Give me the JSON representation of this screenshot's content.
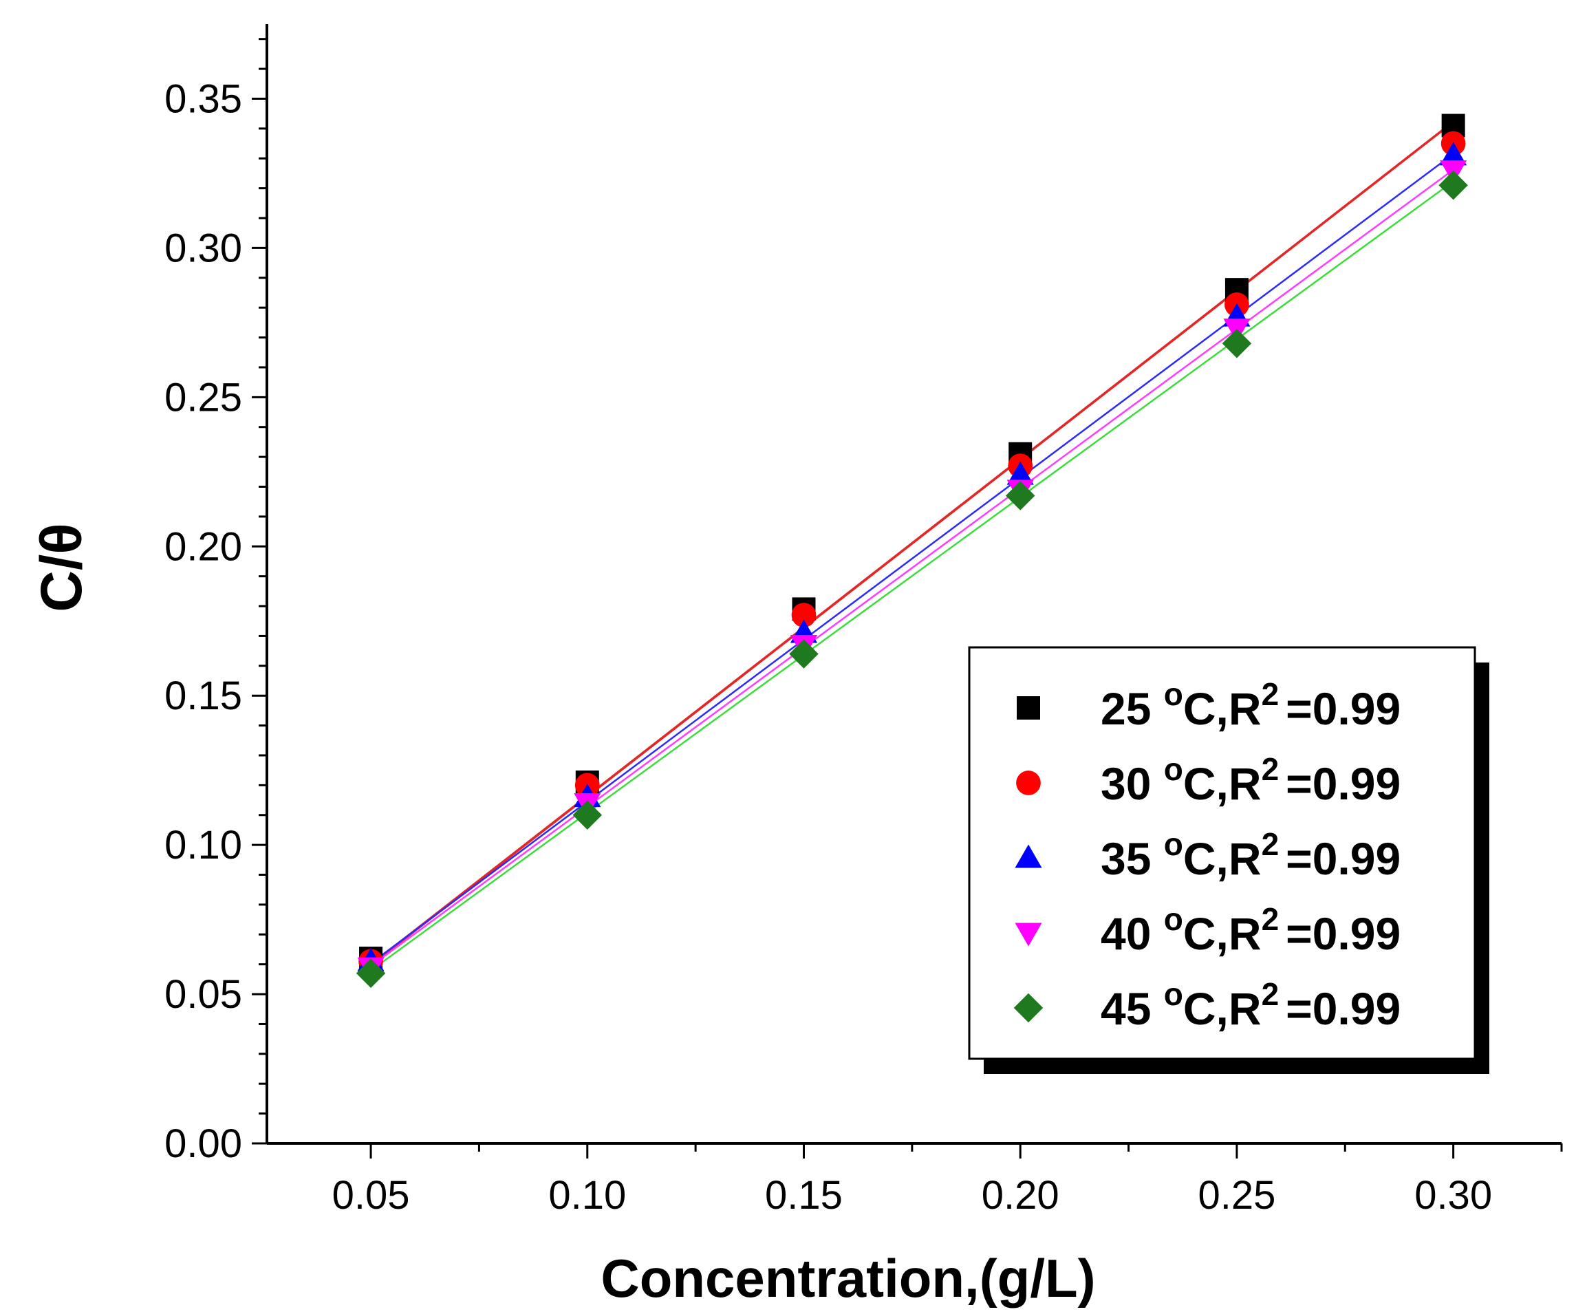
{
  "chart_data": {
    "type": "scatter",
    "title": "",
    "xlabel": "Concentration,(g/L)",
    "ylabel": "C/θ",
    "xlim": [
      0.026,
      0.325
    ],
    "ylim": [
      0.0,
      0.375
    ],
    "xticks": [
      "0.05",
      "0.10",
      "0.15",
      "0.20",
      "0.25",
      "0.30"
    ],
    "yticks": [
      "0.00",
      "0.05",
      "0.10",
      "0.15",
      "0.20",
      "0.25",
      "0.30",
      "0.35"
    ],
    "x": [
      0.05,
      0.1,
      0.15,
      0.2,
      0.25,
      0.3
    ],
    "legend_position": "lower-right",
    "series": [
      {
        "name": "25 oC,R2 =0.99",
        "temp": "25",
        "unit": "C",
        "r2_label": "R",
        "r2_sup": "2",
        "r2_value": "=0.99",
        "marker": "square",
        "marker_color": "#000000",
        "line_color": "#e32626",
        "values": [
          0.062,
          0.121,
          0.179,
          0.231,
          0.286,
          0.341
        ],
        "fit": [
          0.0596,
          0.3421
        ]
      },
      {
        "name": "30 oC,R2 =0.99",
        "temp": "30",
        "unit": "C",
        "r2_label": "R",
        "r2_sup": "2",
        "r2_value": "=0.99",
        "marker": "circle",
        "marker_color": "#ff0000",
        "line_color": "#e32626",
        "values": [
          0.061,
          0.12,
          0.177,
          0.227,
          0.281,
          0.335
        ],
        "fit": [
          0.06,
          0.3424
        ]
      },
      {
        "name": "35 oC,R2 =0.99",
        "temp": "35",
        "unit": "C",
        "r2_label": "R",
        "r2_sup": "2",
        "r2_value": "=0.99",
        "marker": "triangle-up",
        "marker_color": "#0000ff",
        "line_color": "#2a2aff",
        "values": [
          0.061,
          0.116,
          0.171,
          0.224,
          0.277,
          0.331
        ],
        "fit": [
          0.0603,
          0.3315
        ]
      },
      {
        "name": "40 oC,R2 =0.99",
        "temp": "40",
        "unit": "C",
        "r2_label": "R",
        "r2_sup": "2",
        "r2_value": "=0.99",
        "marker": "triangle-down",
        "marker_color": "#ff00ff",
        "line_color": "#ff3cff",
        "values": [
          0.059,
          0.114,
          0.167,
          0.219,
          0.273,
          0.326
        ],
        "fit": [
          0.0594,
          0.3262
        ]
      },
      {
        "name": "45 oC,R2 =0.99",
        "temp": "45",
        "unit": "C",
        "r2_label": "R",
        "r2_sup": "2",
        "r2_value": "=0.99",
        "marker": "diamond",
        "marker_color": "#1f7a1f",
        "line_color": "#3ddc3d",
        "values": [
          0.057,
          0.11,
          0.164,
          0.217,
          0.268,
          0.321
        ],
        "fit": [
          0.0579,
          0.3223
        ]
      }
    ]
  }
}
